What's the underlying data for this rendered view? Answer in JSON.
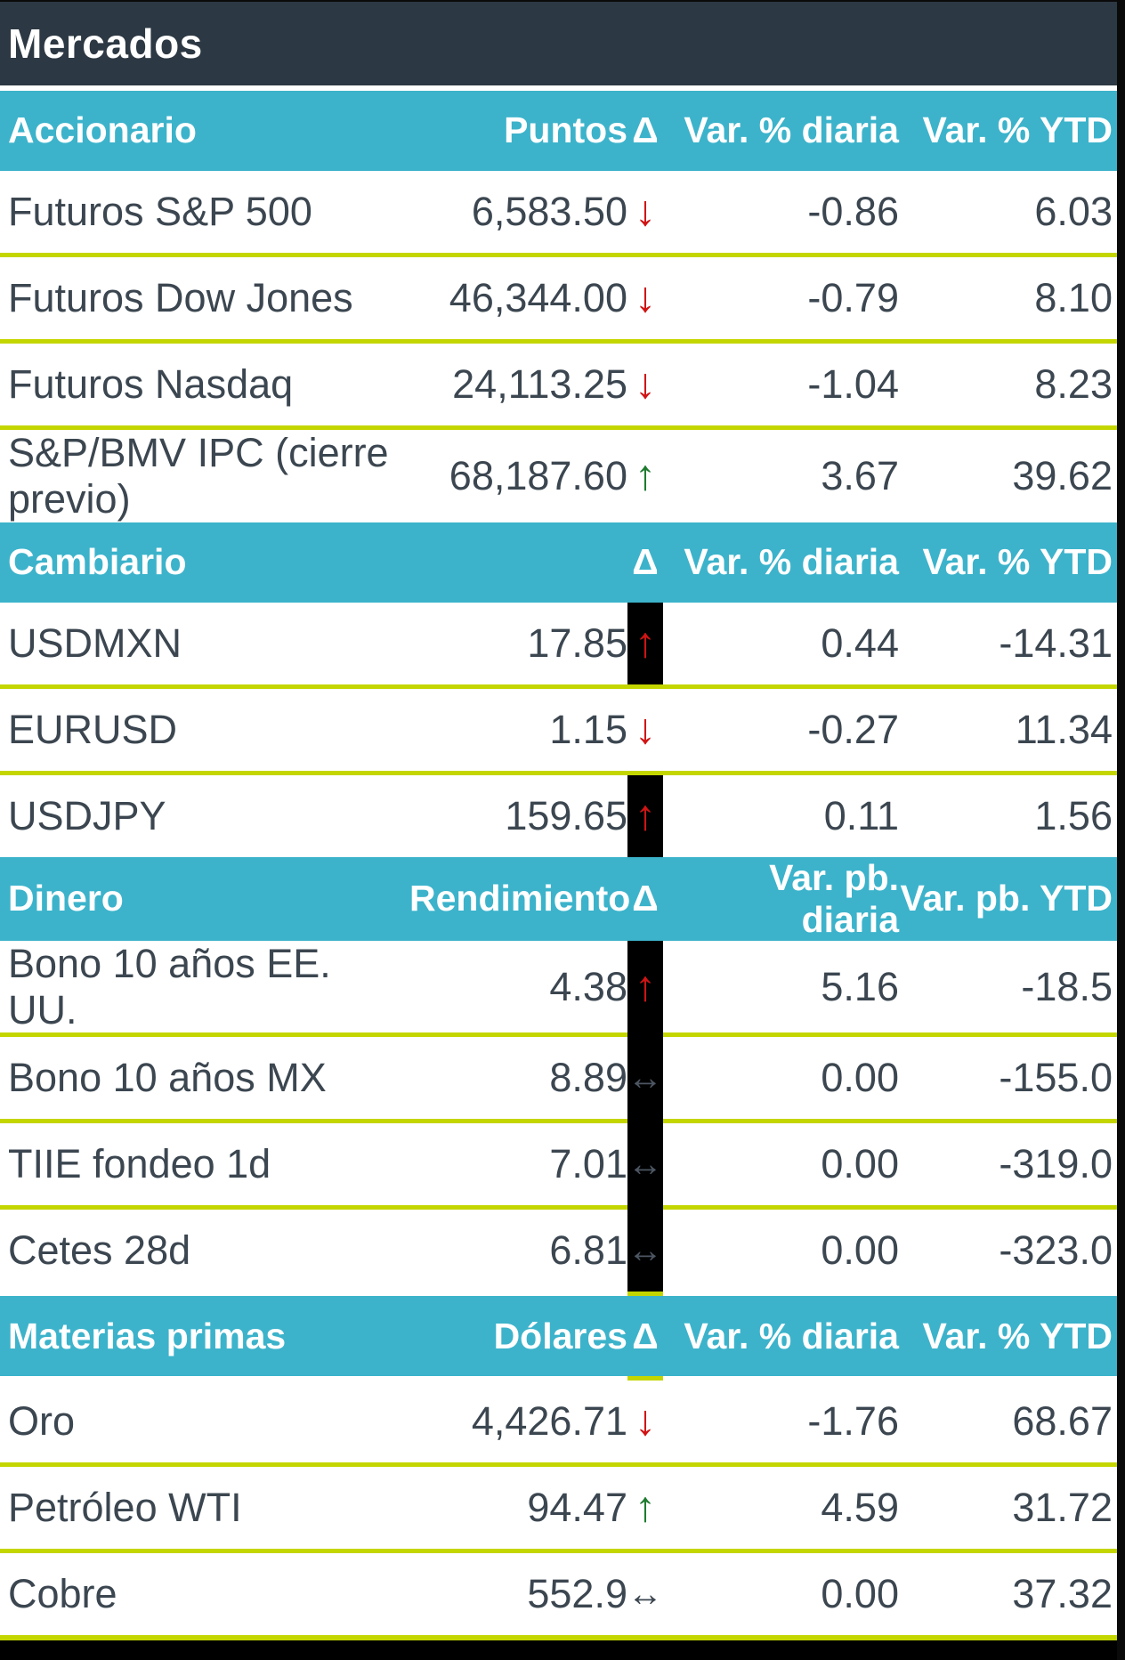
{
  "glyphs": {
    "up": "↑",
    "down": "↓",
    "flat": "↔"
  },
  "colors": {
    "header_dark": "#2C3843",
    "section_teal": "#3CB3CB",
    "text": "#3B4650",
    "separator_lime": "#C4D600",
    "arrow_red": "#D01414",
    "arrow_green": "#1E7B2F",
    "arrow_gray": "#4C5662",
    "arrow_bar_black": "#000000"
  },
  "chart_data": {
    "type": "table",
    "title": "Mercados",
    "sections": [
      {
        "name": "Accionario",
        "value_header": "Puntos",
        "delta_header": "Δ",
        "col3_header": "Var. % diaria",
        "col4_header": "Var. % YTD",
        "separator_bar": false,
        "tick_above": false,
        "tick_below": false,
        "rows": [
          {
            "label": "Futuros S&P 500",
            "value": "6,583.50",
            "arrow": "down",
            "arrow_color": "red",
            "bar": false,
            "col3": "-0.86",
            "col4": "6.03"
          },
          {
            "label": "Futuros Dow Jones",
            "value": "46,344.00",
            "arrow": "down",
            "arrow_color": "red",
            "bar": false,
            "col3": "-0.79",
            "col4": "8.10"
          },
          {
            "label": "Futuros Nasdaq",
            "value": "24,113.25",
            "arrow": "down",
            "arrow_color": "red",
            "bar": false,
            "col3": "-1.04",
            "col4": "8.23"
          },
          {
            "label": "S&P/BMV IPC (cierre previo)",
            "value": "68,187.60",
            "arrow": "up",
            "arrow_color": "green",
            "bar": false,
            "col3": "3.67",
            "col4": "39.62"
          }
        ]
      },
      {
        "name": "Cambiario",
        "value_header": "",
        "delta_header": "Δ",
        "col3_header": "Var. % diaria",
        "col4_header": "Var. % YTD",
        "separator_bar": false,
        "tick_above": false,
        "tick_below": false,
        "rows": [
          {
            "label": "USDMXN",
            "value": "17.85",
            "arrow": "up",
            "arrow_color": "red",
            "bar": true,
            "col3": "0.44",
            "col4": "-14.31"
          },
          {
            "label": "EURUSD",
            "value": "1.15",
            "arrow": "down",
            "arrow_color": "red",
            "bar": false,
            "col3": "-0.27",
            "col4": "11.34"
          },
          {
            "label": "USDJPY",
            "value": "159.65",
            "arrow": "up",
            "arrow_color": "red",
            "bar": true,
            "col3": "0.11",
            "col4": "1.56"
          }
        ]
      },
      {
        "name": "Dinero",
        "value_header": "Rendimiento",
        "delta_header": "Δ",
        "col3_header": "Var. pb. diaria",
        "col4_header": "Var. pb. YTD",
        "separator_bar": true,
        "tick_above": false,
        "tick_below": false,
        "rows": [
          {
            "label": "Bono 10 años EE. UU.",
            "value": "4.38",
            "arrow": "up",
            "arrow_color": "red",
            "bar": true,
            "col3": "5.16",
            "col4": "-18.5"
          },
          {
            "label": "Bono 10 años MX",
            "value": "8.89",
            "arrow": "flat",
            "arrow_color": "gray",
            "bar": true,
            "col3": "0.00",
            "col4": "-155.0"
          },
          {
            "label": "TIIE fondeo 1d",
            "value": "7.01",
            "arrow": "flat",
            "arrow_color": "gray",
            "bar": true,
            "col3": "0.00",
            "col4": "-319.0"
          },
          {
            "label": "Cetes 28d",
            "value": "6.81",
            "arrow": "flat",
            "arrow_color": "gray",
            "bar": true,
            "col3": "0.00",
            "col4": "-323.0"
          }
        ]
      },
      {
        "name": "Materias primas",
        "value_header": "Dólares",
        "delta_header": "Δ",
        "col3_header": "Var. % diaria",
        "col4_header": "Var. % YTD",
        "separator_bar": false,
        "tick_above": true,
        "tick_below": true,
        "rows": [
          {
            "label": "Oro",
            "value": "4,426.71",
            "arrow": "down",
            "arrow_color": "red",
            "bar": false,
            "col3": "-1.76",
            "col4": "68.67"
          },
          {
            "label": "Petróleo WTI",
            "value": "94.47",
            "arrow": "up",
            "arrow_color": "green",
            "bar": false,
            "col3": "4.59",
            "col4": "31.72"
          },
          {
            "label": "Cobre",
            "value": "552.9",
            "arrow": "flat",
            "arrow_color": "dark",
            "bar": false,
            "col3": "0.00",
            "col4": "37.32"
          }
        ]
      }
    ]
  }
}
